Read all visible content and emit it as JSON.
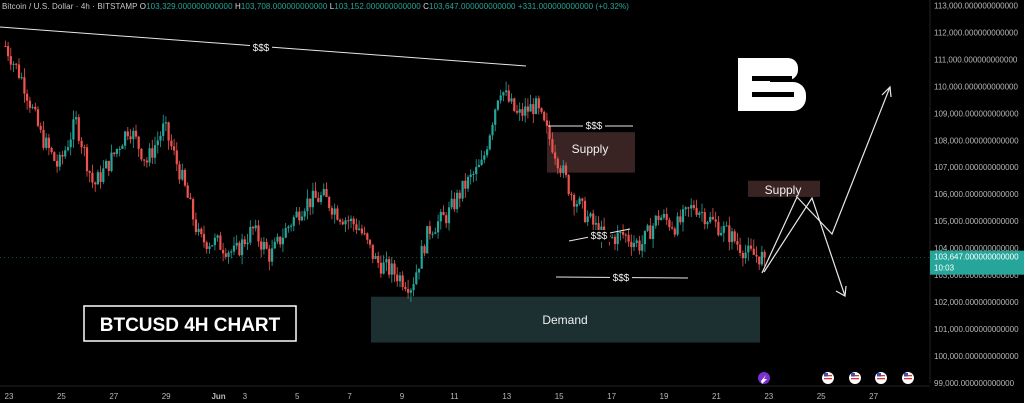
{
  "header": {
    "symbol": "Bitcoin / U.S. Dollar · 4h · BITSTAMP",
    "o_label": "O",
    "o_value": "103,329.000000000000",
    "h_label": "H",
    "h_value": "103,708.000000000000",
    "l_label": "L",
    "l_value": "103,152.000000000000",
    "c_label": "C",
    "c_value": "103,647.000000000000",
    "change": "+331.000000000000 (+0.32%)"
  },
  "annotations": {
    "title": "BTCUSD 4H CHART",
    "supply_main": "Supply",
    "supply_small": "Supply",
    "demand": "Demand",
    "liquidity_top": "$$$",
    "liquidity_supply": "$$$",
    "liquidity_mid": "$$$",
    "liquidity_low": "$$$",
    "logo": "B"
  },
  "price_tag": {
    "price": "103,647.000000000000",
    "countdown": "10:03"
  },
  "colors": {
    "up": "#26a69a",
    "down": "#ef5350",
    "background": "#000000",
    "supply_zone": "#3a2323",
    "demand_zone": "#1c3032"
  },
  "chart_data": {
    "type": "candlestick",
    "title": "BTCUSD 4H CHART",
    "interval": "4h",
    "ylim": [
      99000,
      113000
    ],
    "y_ticks": [
      "113,000.000000000000",
      "112,000.000000000000",
      "111,000.000000000000",
      "110,000.000000000000",
      "109,000.000000000000",
      "108,000.000000000000",
      "107,000.000000000000",
      "106,000.000000000000",
      "105,000.000000000000",
      "104,000.000000000000",
      "103,000.000000000000",
      "102,000.000000000000",
      "101,000.000000000000",
      "100,000.000000000000",
      "99,000.000000000000"
    ],
    "y_tick_values": [
      113000,
      112000,
      111000,
      110000,
      109000,
      108000,
      107000,
      106000,
      105000,
      104000,
      103000,
      102000,
      101000,
      100000,
      99000
    ],
    "x_ticks": [
      "23",
      "25",
      "27",
      "29",
      "Jun",
      "3",
      "5",
      "7",
      "9",
      "11",
      "13",
      "15",
      "17",
      "19",
      "21",
      "23",
      "25",
      "27"
    ],
    "approx_closes": [
      111500,
      110200,
      108200,
      107000,
      108700,
      106300,
      107300,
      108500,
      107200,
      108500,
      106600,
      104300,
      104200,
      103800,
      104700,
      103700,
      104800,
      105700,
      105900,
      105200,
      104800,
      103500,
      103100,
      102600,
      104700,
      105200,
      106300,
      107100,
      110000,
      108900,
      109300,
      107800,
      106100,
      105100,
      104300,
      104500,
      104100,
      105200,
      104800,
      105600,
      105000,
      104500,
      103800,
      103647
    ],
    "zones": [
      {
        "name": "Supply",
        "low": 106800,
        "high": 108300
      },
      {
        "name": "Supply",
        "low": 105900,
        "high": 106500
      },
      {
        "name": "Demand",
        "low": 100500,
        "high": 102200
      }
    ]
  }
}
